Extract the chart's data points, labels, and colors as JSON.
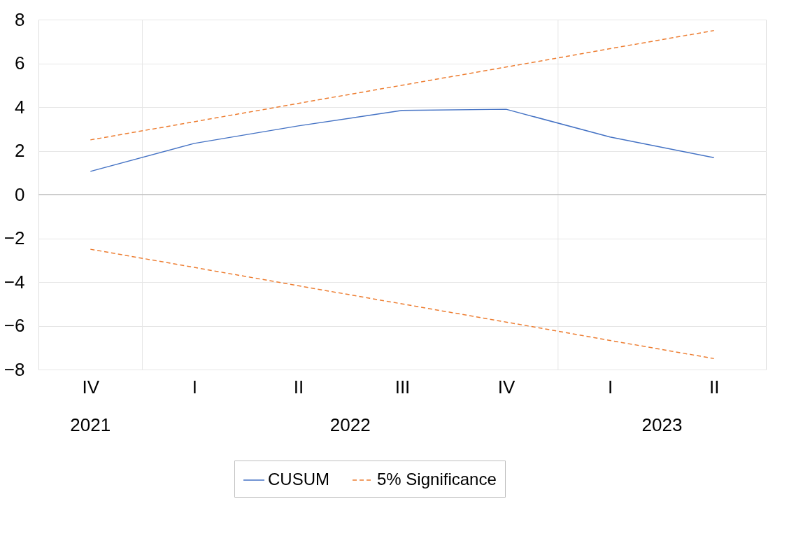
{
  "chart_data": {
    "type": "line",
    "categories": [
      "IV",
      "I",
      "II",
      "III",
      "IV",
      "I",
      "II"
    ],
    "series": [
      {
        "name": "CUSUM",
        "color": "#4472c4",
        "line_style": "solid",
        "values": [
          1.06,
          2.34,
          3.14,
          3.85,
          3.9,
          2.63,
          1.69
        ]
      },
      {
        "name": "5% Significance",
        "color": "#ed7d31",
        "line_style": "dashed",
        "values": [
          2.5,
          3.33,
          4.17,
          5.0,
          5.83,
          6.67,
          7.5
        ]
      },
      {
        "color": "#ed7d31",
        "line_style": "dashed",
        "values": [
          -2.5,
          -3.33,
          -4.17,
          -5.0,
          -5.83,
          -6.67,
          -7.5
        ]
      }
    ],
    "annotations": [
      "2021",
      "2022",
      "2023"
    ],
    "ylim": [
      -8,
      8
    ],
    "yticks": [
      -8,
      -6,
      -4,
      -2,
      0,
      2,
      4,
      6,
      8
    ],
    "ref_lines": [
      {
        "axis": "y",
        "value": 0,
        "color": "#bfbfbf"
      }
    ],
    "grid": "y",
    "legend": "bottom",
    "marker": "none"
  }
}
